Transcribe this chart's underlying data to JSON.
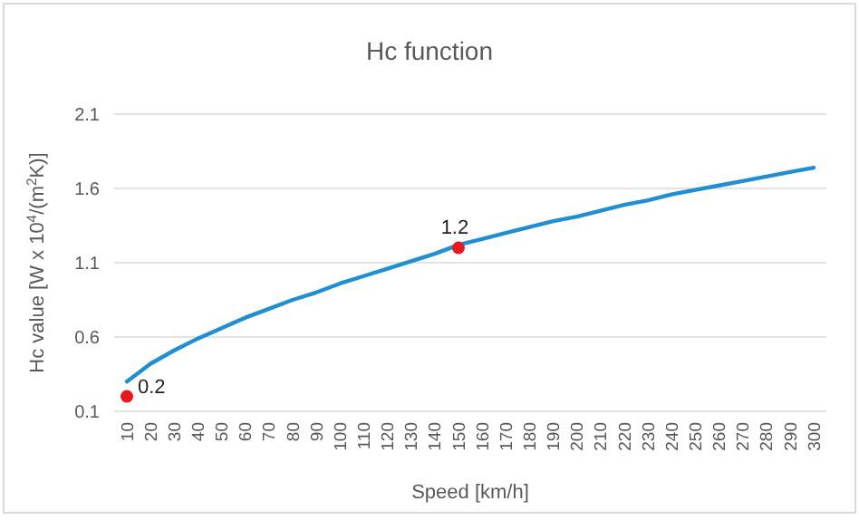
{
  "chart_data": {
    "type": "line",
    "title": "Hc function",
    "xlabel": "Speed [km/h]",
    "ylabel": "Hc value [W x 10$^{4}$/(m$^{2}$K)]",
    "categories": [
      "10",
      "20",
      "30",
      "40",
      "50",
      "60",
      "70",
      "80",
      "90",
      "100",
      "110",
      "120",
      "130",
      "140",
      "150",
      "160",
      "170",
      "180",
      "190",
      "200",
      "210",
      "220",
      "230",
      "240",
      "250",
      "260",
      "270",
      "280",
      "290",
      "300"
    ],
    "series": [
      {
        "color": "#1f8fd1",
        "marker": "none",
        "values": [
          0.3,
          0.42,
          0.51,
          0.59,
          0.66,
          0.73,
          0.79,
          0.85,
          0.9,
          0.96,
          1.01,
          1.06,
          1.11,
          1.16,
          1.22,
          1.26,
          1.3,
          1.34,
          1.38,
          1.41,
          1.45,
          1.49,
          1.52,
          1.56,
          1.59,
          1.62,
          1.65,
          1.68,
          1.71,
          1.74
        ]
      },
      {
        "type": "scatter",
        "marker": "circle",
        "color": "#e8191c",
        "x": [
          "10",
          "150"
        ],
        "values": [
          0.2,
          1.2
        ],
        "value_labels": [
          "0.2",
          "1.2"
        ]
      }
    ],
    "ylim": [
      0.1,
      2.1
    ],
    "yticks": [
      0.1,
      0.6,
      1.1,
      1.6,
      2.1
    ],
    "grid": "y",
    "line_style": "solid"
  }
}
